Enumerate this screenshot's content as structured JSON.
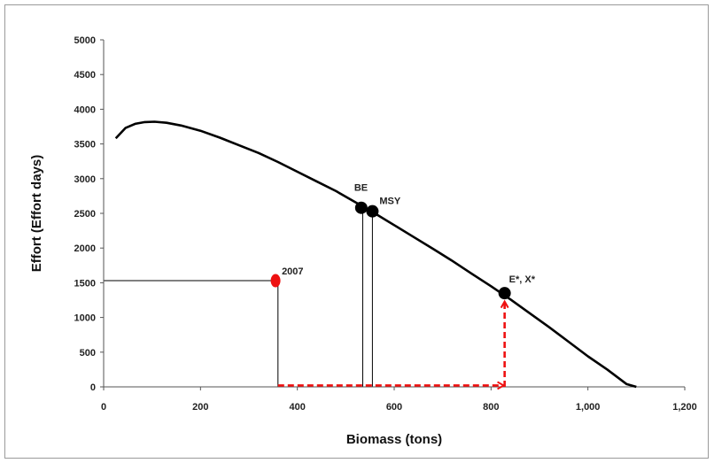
{
  "chart_data": {
    "type": "line",
    "title": "",
    "xlabel": "Biomass (tons)",
    "ylabel": "Effort (Effort days)",
    "xlim": [
      0,
      1200
    ],
    "ylim": [
      0,
      5000
    ],
    "x_ticks": [
      "0",
      "200",
      "400",
      "600",
      "800",
      "1,000",
      "1,200"
    ],
    "y_ticks": [
      "0",
      "500",
      "1000",
      "1500",
      "2000",
      "2500",
      "3000",
      "3500",
      "4000",
      "4500",
      "5000"
    ],
    "grid": false,
    "legend": "none",
    "series": [
      {
        "x": [
          25,
          45,
          65,
          85,
          105,
          130,
          160,
          200,
          240,
          280,
          320,
          360,
          400,
          440,
          480,
          520,
          560,
          600,
          640,
          680,
          720,
          760,
          800,
          840,
          880,
          920,
          960,
          1000,
          1040,
          1080,
          1100
        ],
        "y": [
          3580,
          3730,
          3790,
          3815,
          3820,
          3805,
          3765,
          3690,
          3590,
          3480,
          3370,
          3240,
          3100,
          2960,
          2820,
          2660,
          2500,
          2330,
          2160,
          1990,
          1815,
          1630,
          1450,
          1260,
          1060,
          860,
          650,
          440,
          250,
          40,
          0
        ]
      }
    ],
    "points": [
      {
        "label": "2007",
        "x": 355,
        "y": 1530,
        "color": "#ee1111"
      },
      {
        "label": "BE",
        "x": 532,
        "y": 2580,
        "color": "#000000"
      },
      {
        "label": "MSY",
        "x": 555,
        "y": 2530,
        "color": "#000000"
      },
      {
        "label": "E*, X*",
        "x": 828,
        "y": 1350,
        "color": "#000000"
      }
    ],
    "reference_lines": [
      {
        "from": [
          0,
          1530
        ],
        "to": [
          355,
          1530
        ],
        "color": "#000000"
      },
      {
        "from": [
          360,
          1530
        ],
        "to": [
          360,
          0
        ],
        "color": "#000000"
      },
      {
        "from": [
          535,
          2580
        ],
        "to": [
          535,
          0
        ],
        "color": "#000000"
      },
      {
        "from": [
          555,
          2530
        ],
        "to": [
          555,
          0
        ],
        "color": "#000000"
      }
    ],
    "arrows": [
      {
        "from": [
          360,
          20
        ],
        "to": [
          826,
          20
        ],
        "color": "#ee1111",
        "style": "dashed"
      },
      {
        "from": [
          828,
          0
        ],
        "to": [
          828,
          1230
        ],
        "color": "#ee1111",
        "style": "dashed"
      }
    ]
  }
}
